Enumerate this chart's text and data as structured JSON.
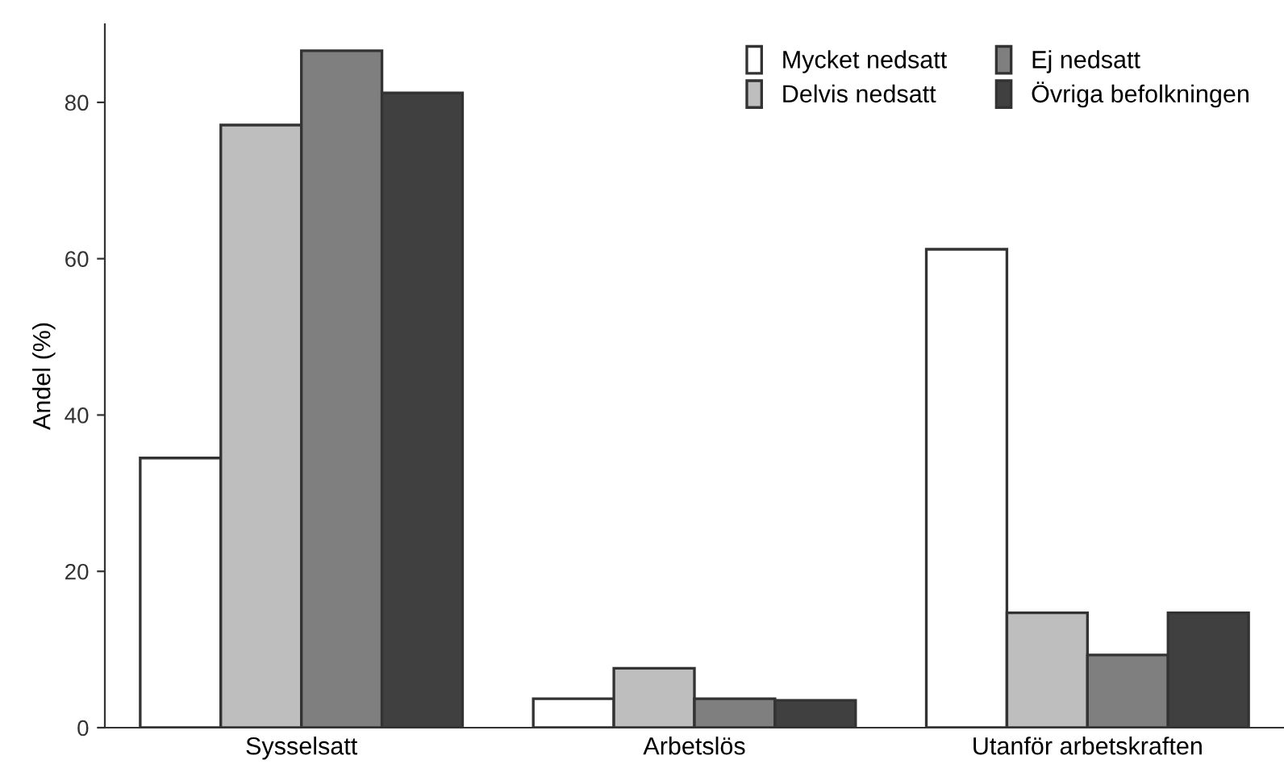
{
  "chart_data": {
    "type": "bar",
    "ylabel": "Andel (%)",
    "categories": [
      "Sysselsatt",
      "Arbetslös",
      "Utanför arbetskraften"
    ],
    "series": [
      {
        "name": "Mycket nedsatt",
        "color": "#ffffff",
        "values": [
          34.5,
          3.7,
          61.2
        ]
      },
      {
        "name": "Delvis nedsatt",
        "color": "#bebebe",
        "values": [
          77.1,
          7.6,
          14.7
        ]
      },
      {
        "name": "Ej nedsatt",
        "color": "#7f7f7f",
        "values": [
          86.6,
          3.7,
          9.3
        ]
      },
      {
        "name": "Övriga befolkningen",
        "color": "#404040",
        "values": [
          81.2,
          3.5,
          14.7
        ]
      }
    ],
    "ylim": [
      0,
      90
    ],
    "yticks": [
      0,
      20,
      40,
      60,
      80
    ],
    "grid": false,
    "legend": "top right"
  }
}
